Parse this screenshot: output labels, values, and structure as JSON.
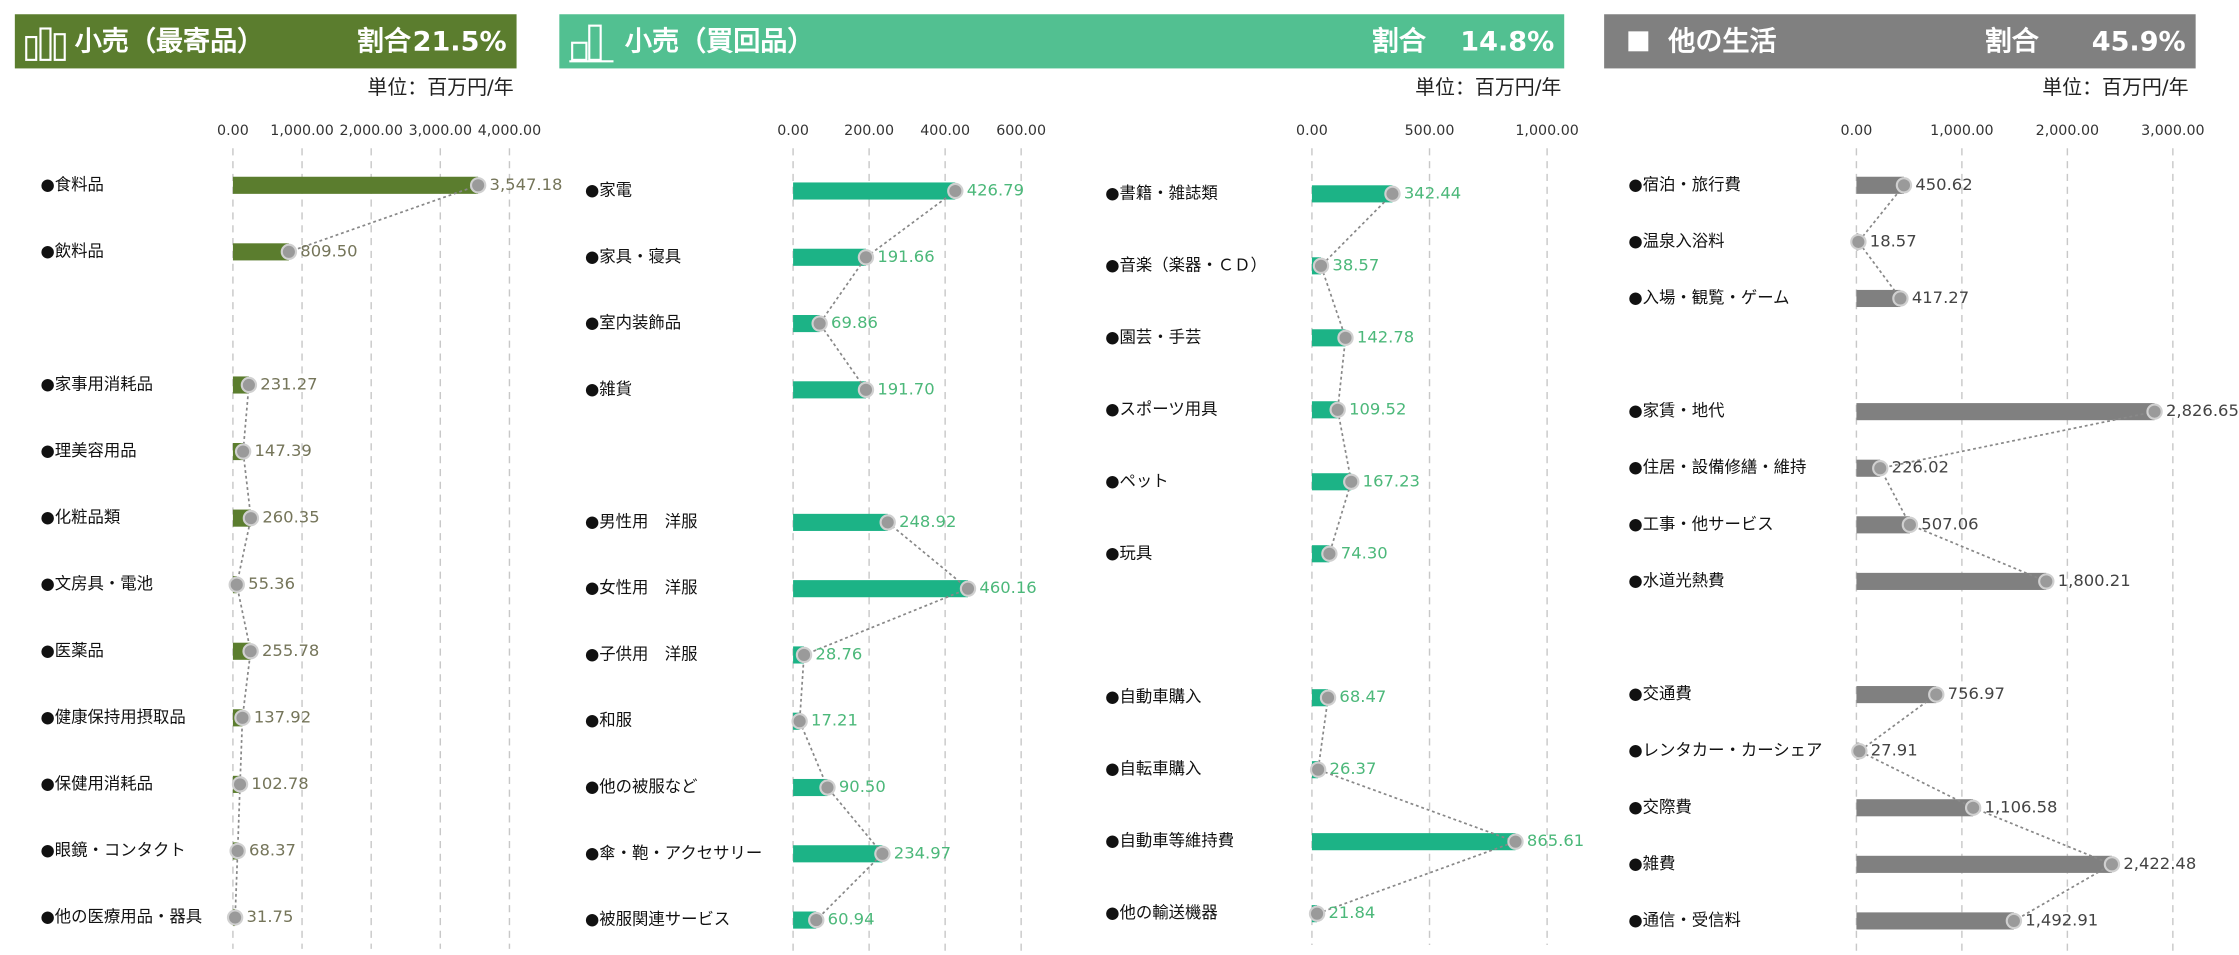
{
  "panels": [
    {
      "title": "小売（最寄品）",
      "share_label": "割合",
      "share": "21.5%",
      "unit": "単位：百万円/年"
    },
    {
      "title": "小売（買回品）",
      "share_label": "割合",
      "share": "14.8%",
      "unit": "単位：百万円/年"
    },
    {
      "title": "他の生活",
      "share_label": "割合",
      "share": "45.9%",
      "unit": "単位：百万円/年"
    }
  ],
  "chart_data": [
    {
      "type": "bar",
      "orientation": "horizontal",
      "color": "#5b7d2e",
      "label_color": "#75755a",
      "grid": true,
      "categories": [
        "●食料品",
        "●飲料品",
        null,
        "●家事用消耗品",
        "●理美容用品",
        "●化粧品類",
        "●文房具・電池",
        "●医薬品",
        "●健康保持用摂取品",
        "●保健用消耗品",
        "●眼鏡・コンタクト",
        "●他の医療用品・器具"
      ],
      "values": [
        3547.18,
        809.5,
        null,
        231.27,
        147.39,
        260.35,
        55.36,
        255.78,
        137.92,
        102.78,
        68.37,
        31.75
      ],
      "value_labels": [
        "3,547.18",
        "809.50",
        null,
        "231.27",
        "147.39",
        "260.35",
        "55.36",
        "255.78",
        "137.92",
        "102.78",
        "68.37",
        "31.75"
      ],
      "xlim": [
        0,
        4000
      ],
      "xticks": [
        {
          "value": 0,
          "label": "0.00"
        },
        {
          "value": 1000,
          "label": "1,000.00"
        },
        {
          "value": 2000,
          "label": "2,000.00"
        },
        {
          "value": 3000,
          "label": "3,000.00"
        },
        {
          "value": 4000,
          "label": "4,000.00"
        }
      ]
    },
    {
      "type": "bar",
      "orientation": "horizontal",
      "color": "#1cb386",
      "label_color": "#4cb87a",
      "grid": true,
      "categories": [
        "●家電",
        "●家具・寝具",
        "●室内装飾品",
        "●雑貨",
        null,
        "●男性用　洋服",
        "●女性用　洋服",
        "●子供用　洋服",
        "●和服",
        "●他の被服など",
        "●傘・鞄・アクセサリー",
        "●被服関連サービス"
      ],
      "values": [
        426.79,
        191.66,
        69.86,
        191.7,
        null,
        248.92,
        460.16,
        28.76,
        17.21,
        90.5,
        234.97,
        60.94
      ],
      "value_labels": [
        "426.79",
        "191.66",
        "69.86",
        "191.70",
        null,
        "248.92",
        "460.16",
        "28.76",
        "17.21",
        "90.50",
        "234.97",
        "60.94"
      ],
      "xlim": [
        0,
        600
      ],
      "xticks": [
        {
          "value": 0,
          "label": "0.00"
        },
        {
          "value": 200,
          "label": "200.00"
        },
        {
          "value": 400,
          "label": "400.00"
        },
        {
          "value": 600,
          "label": "600.00"
        }
      ]
    },
    {
      "type": "bar",
      "orientation": "horizontal",
      "color": "#1cb386",
      "label_color": "#4cb87a",
      "grid": true,
      "categories": [
        "●書籍・雑誌類",
        "●音楽（楽器・ＣＤ）",
        "●園芸・手芸",
        "●スポーツ用具",
        "●ペット",
        "●玩具",
        null,
        "●自動車購入",
        "●自転車購入",
        "●自動車等維持費",
        "●他の輸送機器"
      ],
      "values": [
        342.44,
        38.57,
        142.78,
        109.52,
        167.23,
        74.3,
        null,
        68.47,
        26.37,
        865.61,
        21.84
      ],
      "value_labels": [
        "342.44",
        "38.57",
        "142.78",
        "109.52",
        "167.23",
        "74.30",
        null,
        "68.47",
        "26.37",
        "865.61",
        "21.84"
      ],
      "xlim": [
        0,
        1000
      ],
      "xticks": [
        {
          "value": 0,
          "label": "0.00"
        },
        {
          "value": 500,
          "label": "500.00"
        },
        {
          "value": 1000,
          "label": "1,000.00"
        }
      ]
    },
    {
      "type": "bar",
      "orientation": "horizontal",
      "color": "#808080",
      "label_color": "#444444",
      "grid": true,
      "categories": [
        "●宿泊・旅行費",
        "●温泉入浴料",
        "●入場・観覧・ゲーム",
        null,
        "●家賃・地代",
        "●住居・設備修繕・維持",
        "●工事・他サービス",
        "●水道光熱費",
        null,
        "●交通費",
        "●レンタカー・カーシェア",
        "●交際費",
        "●雑費",
        "●通信・受信料"
      ],
      "values": [
        450.62,
        18.57,
        417.27,
        null,
        2826.65,
        226.02,
        507.06,
        1800.21,
        null,
        756.97,
        27.91,
        1106.58,
        2422.48,
        1492.91
      ],
      "value_labels": [
        "450.62",
        "18.57",
        "417.27",
        null,
        "2,826.65",
        "226.02",
        "507.06",
        "1,800.21",
        null,
        "756.97",
        "27.91",
        "1,106.58",
        "2,422.48",
        "1,492.91"
      ],
      "xlim": [
        0,
        3000
      ],
      "xticks": [
        {
          "value": 0,
          "label": "0.00"
        },
        {
          "value": 1000,
          "label": "1,000.00"
        },
        {
          "value": 2000,
          "label": "2,000.00"
        },
        {
          "value": 3000,
          "label": "3,000.00"
        }
      ]
    }
  ]
}
